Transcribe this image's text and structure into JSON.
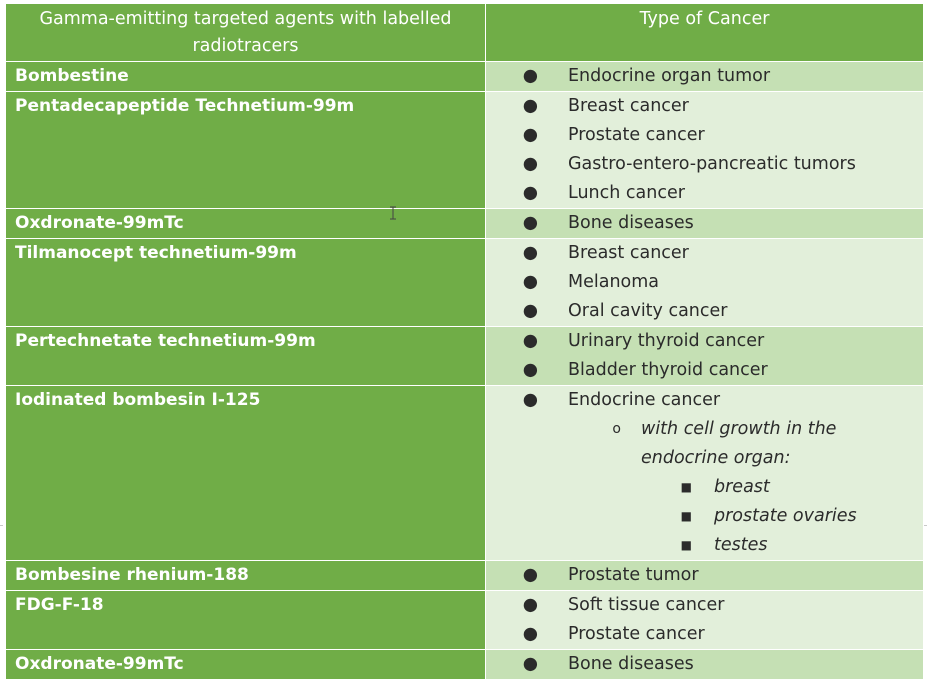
{
  "table": {
    "headers": [
      "Gamma-emitting targeted agents with labelled radiotracers",
      "Type of Cancer"
    ],
    "rows": [
      {
        "agent": "Bombestine",
        "cancers": [
          "Endocrine organ tumor"
        ]
      },
      {
        "agent": "Pentadecapeptide Technetium-99m",
        "cancers": [
          "Breast cancer",
          "Prostate cancer",
          "Gastro-entero-pancreatic tumors",
          "Lunch cancer"
        ]
      },
      {
        "agent": "Oxdronate-99mTc",
        "cancers": [
          "Bone diseases"
        ]
      },
      {
        "agent": "Tilmanocept technetium-99m",
        "cancers": [
          "Breast cancer",
          "Melanoma",
          "Oral cavity cancer"
        ]
      },
      {
        "agent": "Pertechnetate technetium-99m",
        "cancers": [
          "Urinary thyroid cancer",
          "Bladder thyroid cancer"
        ]
      },
      {
        "agent": "Iodinated bombesin I-125",
        "cancers": [
          "Endocrine cancer"
        ],
        "sub": {
          "text": "with cell growth in the endocrine organ:",
          "items": [
            "breast",
            "prostate ovaries",
            "testes"
          ]
        }
      },
      {
        "agent": "Bombesine rhenium-188",
        "cancers": [
          "Prostate tumor"
        ]
      },
      {
        "agent": "FDG-F-18",
        "cancers": [
          "Soft tissue cancer",
          "Prostate cancer"
        ]
      },
      {
        "agent": "Oxdronate-99mTc",
        "cancers": [
          "Bone diseases"
        ]
      }
    ]
  },
  "glyphs": {
    "bullet": "●",
    "sub_bullet": "o",
    "subsub_bullet": "■"
  },
  "colors": {
    "header_bg": "#70ad47",
    "agent_bg": "#70ad47",
    "row_dark": "#c5e0b4",
    "row_light": "#e2efda"
  }
}
